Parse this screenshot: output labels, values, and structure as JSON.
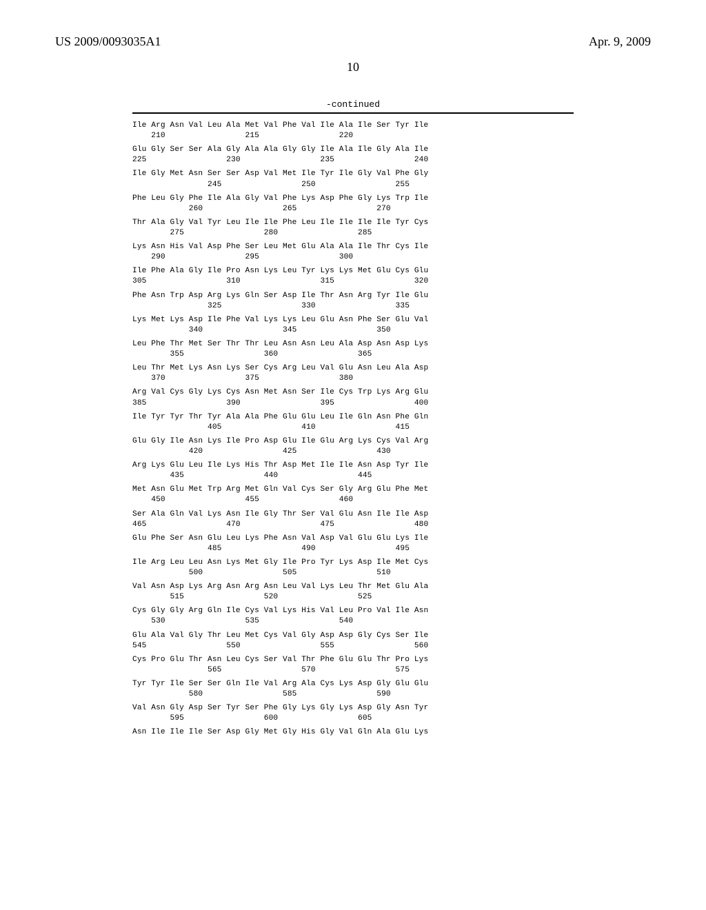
{
  "header": {
    "pub_left": "US 2009/0093035A1",
    "pub_right": "Apr. 9, 2009"
  },
  "page_number": "10",
  "continued_label": "-continued",
  "sequence_rows": [
    {
      "aa": "Ile Arg Asn Val Leu Ala Met Val Phe Val Ile Ala Ile Ser Tyr Ile",
      "nums": "    210                 215                 220"
    },
    {
      "aa": "Glu Gly Ser Ser Ala Gly Ala Ala Gly Gly Ile Ala Ile Gly Ala Ile",
      "nums": "225                 230                 235                 240"
    },
    {
      "aa": "Ile Gly Met Asn Ser Ser Asp Val Met Ile Tyr Ile Gly Val Phe Gly",
      "nums": "                245                 250                 255"
    },
    {
      "aa": "Phe Leu Gly Phe Ile Ala Gly Val Phe Lys Asp Phe Gly Lys Trp Ile",
      "nums": "            260                 265                 270"
    },
    {
      "aa": "Thr Ala Gly Val Tyr Leu Ile Ile Phe Leu Ile Ile Ile Ile Tyr Cys",
      "nums": "        275                 280                 285"
    },
    {
      "aa": "Lys Asn His Val Asp Phe Ser Leu Met Glu Ala Ala Ile Thr Cys Ile",
      "nums": "    290                 295                 300"
    },
    {
      "aa": "Ile Phe Ala Gly Ile Pro Asn Lys Leu Tyr Lys Lys Met Glu Cys Glu",
      "nums": "305                 310                 315                 320"
    },
    {
      "aa": "Phe Asn Trp Asp Arg Lys Gln Ser Asp Ile Thr Asn Arg Tyr Ile Glu",
      "nums": "                325                 330                 335"
    },
    {
      "aa": "Lys Met Lys Asp Ile Phe Val Lys Lys Leu Glu Asn Phe Ser Glu Val",
      "nums": "            340                 345                 350"
    },
    {
      "aa": "Leu Phe Thr Met Ser Thr Thr Leu Asn Asn Leu Ala Asp Asn Asp Lys",
      "nums": "        355                 360                 365"
    },
    {
      "aa": "Leu Thr Met Lys Asn Lys Ser Cys Arg Leu Val Glu Asn Leu Ala Asp",
      "nums": "    370                 375                 380"
    },
    {
      "aa": "Arg Val Cys Gly Lys Cys Asn Met Asn Ser Ile Cys Trp Lys Arg Glu",
      "nums": "385                 390                 395                 400"
    },
    {
      "aa": "Ile Tyr Tyr Thr Tyr Ala Ala Phe Glu Glu Leu Ile Gln Asn Phe Gln",
      "nums": "                405                 410                 415"
    },
    {
      "aa": "Glu Gly Ile Asn Lys Ile Pro Asp Glu Ile Glu Arg Lys Cys Val Arg",
      "nums": "            420                 425                 430"
    },
    {
      "aa": "Arg Lys Glu Leu Ile Lys His Thr Asp Met Ile Ile Asn Asp Tyr Ile",
      "nums": "        435                 440                 445"
    },
    {
      "aa": "Met Asn Glu Met Trp Arg Met Gln Val Cys Ser Gly Arg Glu Phe Met",
      "nums": "    450                 455                 460"
    },
    {
      "aa": "Ser Ala Gln Val Lys Asn Ile Gly Thr Ser Val Glu Asn Ile Ile Asp",
      "nums": "465                 470                 475                 480"
    },
    {
      "aa": "Glu Phe Ser Asn Glu Leu Lys Phe Asn Val Asp Val Glu Glu Lys Ile",
      "nums": "                485                 490                 495"
    },
    {
      "aa": "Ile Arg Leu Leu Asn Lys Met Gly Ile Pro Tyr Lys Asp Ile Met Cys",
      "nums": "            500                 505                 510"
    },
    {
      "aa": "Val Asn Asp Lys Arg Asn Arg Asn Leu Val Lys Leu Thr Met Glu Ala",
      "nums": "        515                 520                 525"
    },
    {
      "aa": "Cys Gly Gly Arg Gln Ile Cys Val Lys His Val Leu Pro Val Ile Asn",
      "nums": "    530                 535                 540"
    },
    {
      "aa": "Glu Ala Val Gly Thr Leu Met Cys Val Gly Asp Asp Gly Cys Ser Ile",
      "nums": "545                 550                 555                 560"
    },
    {
      "aa": "Cys Pro Glu Thr Asn Leu Cys Ser Val Thr Phe Glu Glu Thr Pro Lys",
      "nums": "                565                 570                 575"
    },
    {
      "aa": "Tyr Tyr Ile Ser Ser Gln Ile Val Arg Ala Cys Lys Asp Gly Glu Glu",
      "nums": "            580                 585                 590"
    },
    {
      "aa": "Val Asn Gly Asp Ser Tyr Ser Phe Gly Lys Gly Lys Asp Gly Asn Tyr",
      "nums": "        595                 600                 605"
    },
    {
      "aa": "Asn Ile Ile Ile Ser Asp Gly Met Gly His Gly Val Gln Ala Glu Lys",
      "nums": ""
    }
  ]
}
